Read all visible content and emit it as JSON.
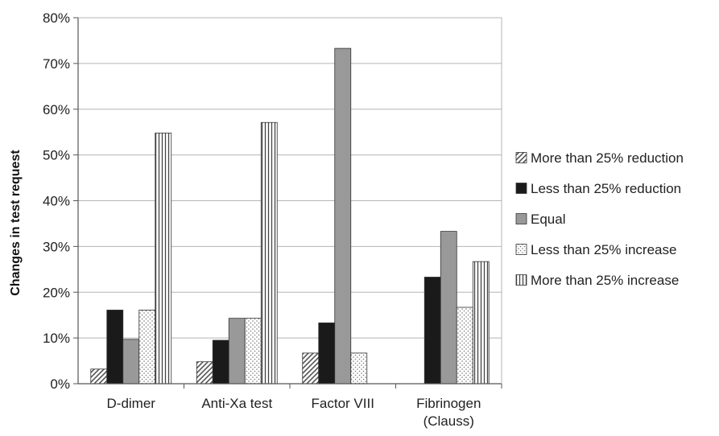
{
  "chart_data": {
    "type": "bar",
    "ylabel": "Changes in test request",
    "xlabel": "",
    "ylim": [
      0,
      80
    ],
    "y_tick_values": [
      0,
      10,
      20,
      30,
      40,
      50,
      60,
      70,
      80
    ],
    "y_tick_labels": [
      "0%",
      "10%",
      "20%",
      "30%",
      "40%",
      "50%",
      "60%",
      "70%",
      "80%"
    ],
    "grid": "horizontal",
    "legend_position": "right",
    "categories": [
      [
        "D-dimer"
      ],
      [
        "Anti-Xa test"
      ],
      [
        "Factor VIII"
      ],
      [
        "Fibrinogen",
        "(Clauss)"
      ]
    ],
    "series": [
      {
        "name": "More than 25% reduction",
        "pattern": "diagonal-hatch",
        "color": "#555555",
        "values": [
          3.2,
          4.8,
          6.7,
          0
        ]
      },
      {
        "name": "Less than 25% reduction",
        "pattern": "solid",
        "color": "#1a1a1a",
        "values": [
          16.1,
          9.5,
          13.3,
          23.3
        ]
      },
      {
        "name": "Equal",
        "pattern": "solid",
        "color": "#999999",
        "values": [
          9.7,
          14.3,
          73.3,
          33.3
        ]
      },
      {
        "name": "Less than 25% increase",
        "pattern": "dots",
        "color": "#777777",
        "values": [
          16.1,
          14.3,
          6.7,
          16.7
        ]
      },
      {
        "name": "More than 25% increase",
        "pattern": "vertical-lines",
        "color": "#444444",
        "values": [
          54.8,
          57.1,
          0,
          26.7
        ]
      }
    ]
  }
}
